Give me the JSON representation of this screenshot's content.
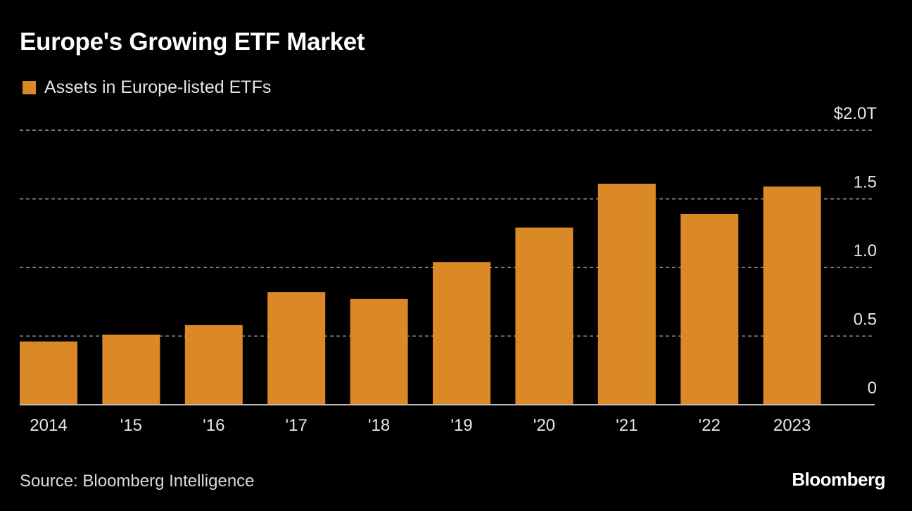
{
  "header": {
    "title": "Europe's Growing ETF Market"
  },
  "footer": {
    "source": "Source: Bloomberg Intelligence",
    "brand": "Bloomberg"
  },
  "colors": {
    "background": "#000000",
    "bar": "#DB8826",
    "grid": "#7a7a7a",
    "baseline": "#bfbfbf",
    "text": "#e6e6e6"
  },
  "chart_data": {
    "type": "bar",
    "title": "Europe's Growing ETF Market",
    "xlabel": "",
    "ylabel": "",
    "unit": "$ trillions",
    "legend": {
      "position": "top-left",
      "entries": [
        "Assets in Europe-listed ETFs"
      ]
    },
    "categories": [
      "2014",
      "'15",
      "'16",
      "'17",
      "'18",
      "'19",
      "'20",
      "'21",
      "'22",
      "2023"
    ],
    "series": [
      {
        "name": "Assets in Europe-listed ETFs",
        "values": [
          0.46,
          0.51,
          0.58,
          0.82,
          0.77,
          1.04,
          1.29,
          1.61,
          1.39,
          1.59
        ]
      }
    ],
    "ylim": [
      0,
      2.0
    ],
    "yticks": [
      0,
      0.5,
      1.0,
      1.5,
      2.0
    ],
    "ytick_labels": [
      "0",
      "0.5",
      "1.0",
      "1.5",
      "$2.0T"
    ],
    "y_axis_side": "right",
    "grid": true
  }
}
